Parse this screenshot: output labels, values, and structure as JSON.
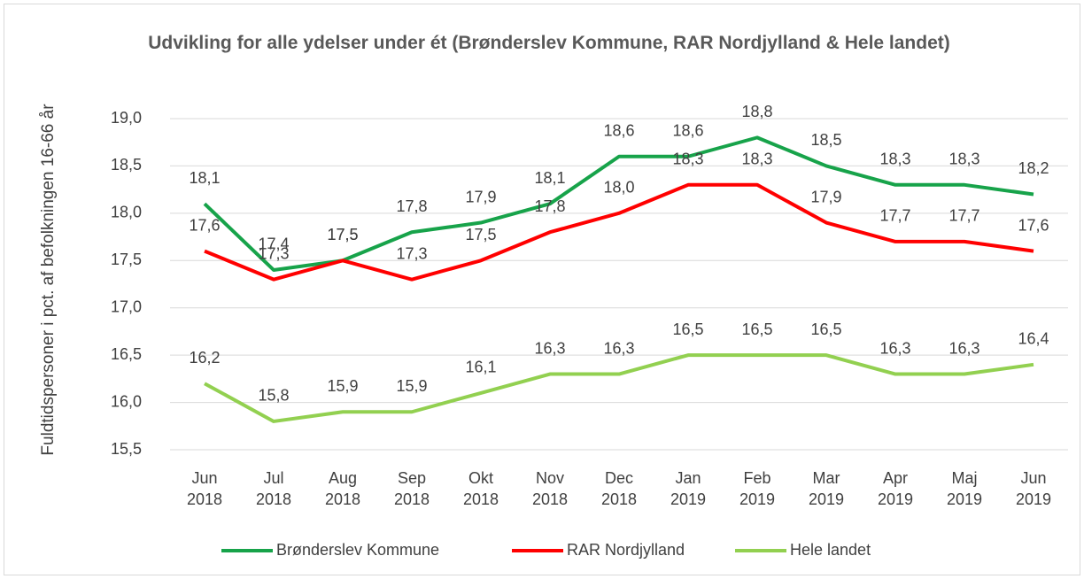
{
  "chart_data": {
    "type": "line",
    "title": "Udvikling for alle ydelser under ét (Brønderslev Kommune, RAR Nordjylland & Hele landet)",
    "y_label": "Fuldtidspersoner i pct. af befolkningen 16-66 år",
    "categories": [
      "Jun 2018",
      "Jul 2018",
      "Aug 2018",
      "Sep 2018",
      "Okt 2018",
      "Nov 2018",
      "Dec 2018",
      "Jan 2019",
      "Feb 2019",
      "Mar 2019",
      "Apr 2019",
      "Maj 2019",
      "Jun 2019"
    ],
    "series": [
      {
        "name": "Brønderslev Kommune",
        "color": "#17a34a",
        "values": [
          18.1,
          17.4,
          17.5,
          17.8,
          17.9,
          18.1,
          18.6,
          18.6,
          18.8,
          18.5,
          18.3,
          18.3,
          18.2
        ],
        "value_labels": [
          "18,1",
          "17,4",
          "17,5",
          "17,8",
          "17,9",
          "18,1",
          "18,6",
          "18,6",
          "18,8",
          "18,5",
          "18,3",
          "18,3",
          "18,2"
        ]
      },
      {
        "name": "RAR Nordjylland",
        "color": "#ff0000",
        "values": [
          17.6,
          17.3,
          17.5,
          17.3,
          17.5,
          17.8,
          18.0,
          18.3,
          18.3,
          17.9,
          17.7,
          17.7,
          17.6
        ],
        "value_labels": [
          "17,6",
          "17,3",
          "17,5",
          "17,3",
          "17,5",
          "17,8",
          "18,0",
          "18,3",
          "18,3",
          "17,9",
          "17,7",
          "17,7",
          "17,6"
        ]
      },
      {
        "name": "Hele landet",
        "color": "#92d050",
        "values": [
          16.2,
          15.8,
          15.9,
          15.9,
          16.1,
          16.3,
          16.3,
          16.5,
          16.5,
          16.5,
          16.3,
          16.3,
          16.4
        ],
        "value_labels": [
          "16,2",
          "15,8",
          "15,9",
          "15,9",
          "16,1",
          "16,3",
          "16,3",
          "16,5",
          "16,5",
          "16,5",
          "16,3",
          "16,3",
          "16,4"
        ]
      }
    ],
    "ylim": [
      15.5,
      19.0
    ],
    "yticks": [
      {
        "value": 15.5,
        "label": "15,5"
      },
      {
        "value": 16,
        "label": "16,0"
      },
      {
        "value": 16.5,
        "label": "16,5"
      },
      {
        "value": 17,
        "label": "17,0"
      },
      {
        "value": 17.5,
        "label": "17,5"
      },
      {
        "value": 18,
        "label": "18,0"
      },
      {
        "value": 18.5,
        "label": "18,5"
      },
      {
        "value": 19,
        "label": "19,0"
      }
    ],
    "grid": true,
    "legend": "bottom"
  }
}
